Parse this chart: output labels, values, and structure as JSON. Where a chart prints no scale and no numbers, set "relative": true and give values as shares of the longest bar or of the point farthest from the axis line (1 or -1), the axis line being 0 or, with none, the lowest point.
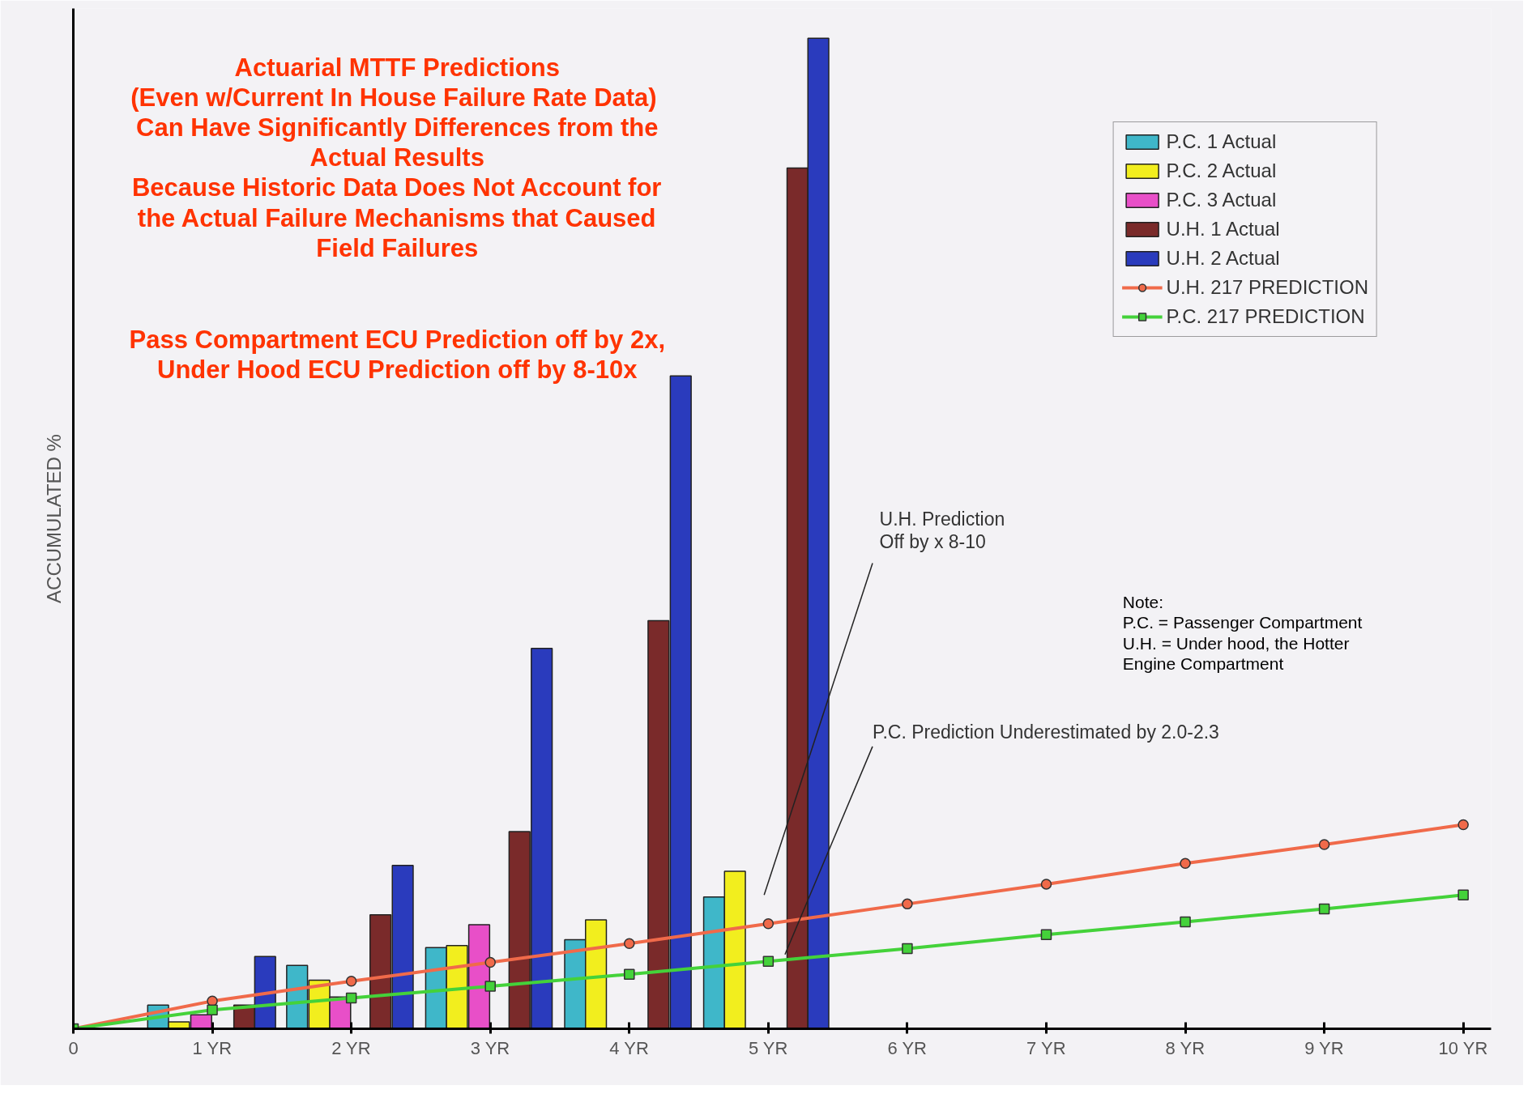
{
  "chart_data": {
    "type": "bar",
    "relative": true,
    "ylabel": "ACCUMULATED %",
    "xlim": [
      0,
      10.2
    ],
    "xticks": [
      0,
      {
        "value": 1,
        "label": "1 YR"
      },
      {
        "value": 2,
        "label": "2 YR"
      },
      {
        "value": 3,
        "label": "3 YR"
      },
      {
        "value": 4,
        "label": "4 YR"
      },
      {
        "value": 5,
        "label": "5 YR"
      },
      {
        "value": 6,
        "label": "6 YR"
      },
      {
        "value": 7,
        "label": "7 YR"
      },
      {
        "value": 8,
        "label": "8 YR"
      },
      {
        "value": 9,
        "label": "9 YR"
      },
      {
        "value": 10,
        "label": "10 YR"
      }
    ],
    "grid": false,
    "legend": "top right",
    "series": [
      {
        "name": "P.C. 1 Actual",
        "color": "#3fb7c9",
        "x": [
          0.61,
          1.61,
          2.61,
          3.61,
          4.61
        ],
        "values": [
          0.024,
          0.064,
          0.082,
          0.09,
          0.133
        ]
      },
      {
        "name": "P.C. 2 Actual",
        "color": "#f2ee1e",
        "x": [
          0.76,
          1.77,
          2.76,
          3.76,
          4.76
        ],
        "values": [
          0.007,
          0.049,
          0.084,
          0.11,
          0.159
        ]
      },
      {
        "name": "P.C. 3 Actual",
        "color": "#e84fc8",
        "x": [
          0.92,
          1.92,
          2.92
        ],
        "values": [
          0.014,
          0.032,
          0.105
        ]
      },
      {
        "name": "U.H. 1 Actual",
        "color": "#7a2a2a",
        "x": [
          1.23,
          2.21,
          3.21,
          4.21,
          5.21
        ],
        "values": [
          0.024,
          0.115,
          0.199,
          0.412,
          0.869
        ]
      },
      {
        "name": "U.H. 2 Actual",
        "color": "#2a3bbd",
        "x": [
          1.38,
          2.37,
          3.37,
          4.37,
          5.36
        ],
        "values": [
          0.073,
          0.165,
          0.384,
          0.659,
          1.0
        ]
      },
      {
        "name": "U.H. 217 PREDICTION",
        "type": "line",
        "color": "#f06a4a",
        "marker": "circle",
        "x": [
          0,
          1,
          2,
          3,
          4,
          5,
          6,
          7,
          8,
          9,
          10
        ],
        "values": [
          0,
          0.028,
          0.048,
          0.067,
          0.086,
          0.106,
          0.126,
          0.146,
          0.167,
          0.186,
          0.206
        ]
      },
      {
        "name": "P.C. 217 PREDICTION",
        "type": "line",
        "color": "#44d23a",
        "marker": "square",
        "x": [
          0,
          1,
          2,
          3,
          4,
          5,
          6,
          7,
          8,
          9,
          10
        ],
        "values": [
          0,
          0.019,
          0.031,
          0.043,
          0.055,
          0.068,
          0.081,
          0.095,
          0.108,
          0.121,
          0.135
        ]
      }
    ],
    "annotations": [
      "Actuarial MTTF Predictions\n(Even w/Current  In House Failure Rate Data)\nCan Have Significantly Differences from the\nActual Results\nBecause Historic Data Does Not Account for\nthe Actual Failure Mechanisms that Caused\nField Failures",
      "Pass Compartment ECU Prediction off by 2x,\nUnder Hood ECU Prediction off by 8-10x",
      "U.H. Prediction\n Off by  x 8-10",
      "P.C. Prediction Underestimated by 2.0-2.3",
      "Note:\nP.C. = Passenger Compartment\nU.H. = Under hood, the Hotter\n          Engine Compartment"
    ]
  }
}
